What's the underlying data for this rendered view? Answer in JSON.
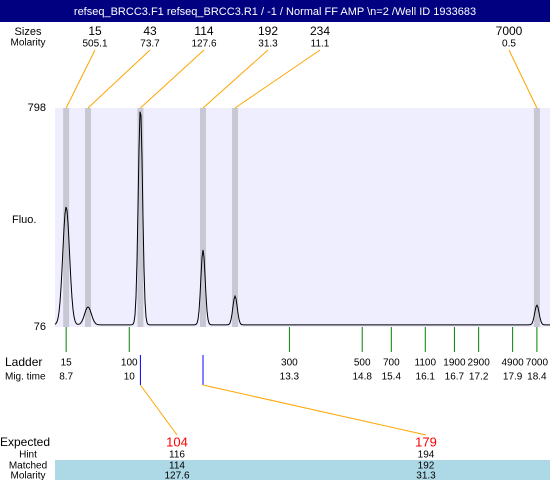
{
  "title": "refseq_BRCC3.F1  refseq_BRCC3.R1 / -1 / Normal FF AMP \\n=2 /Well ID 1933683",
  "header": {
    "size_label": "Sizes",
    "molarity_label": "Molarity",
    "peaks": [
      {
        "size": 15,
        "molarity": 505.1
      },
      {
        "size": 43,
        "molarity": 73.7
      },
      {
        "size": 114,
        "molarity": 127.6
      },
      {
        "size": 192,
        "molarity": 31.3
      },
      {
        "size": 234,
        "molarity": 11.1
      },
      {
        "size": 7000,
        "molarity": 0.5
      }
    ]
  },
  "plot": {
    "y_label": "Fluo.",
    "ylim": [
      76,
      798
    ],
    "yticks": [
      76,
      798
    ],
    "xlim": [
      8.47,
      18.67
    ],
    "baseline": 83,
    "trace_peaks": [
      {
        "time": 8.7,
        "height": 472
      },
      {
        "time": 9.15,
        "height": 142
      },
      {
        "time": 10.23,
        "height": 798
      },
      {
        "time": 11.52,
        "height": 330
      },
      {
        "time": 12.18,
        "height": 178
      },
      {
        "time": 18.4,
        "height": 148
      }
    ]
  },
  "ladder": {
    "label": "Ladder",
    "time_label": "Mig. time",
    "sizes": [
      15,
      100,
      300,
      500,
      700,
      1100,
      1900,
      2900,
      4900,
      7000
    ],
    "times": [
      8.7,
      10,
      13.3,
      14.8,
      15.4,
      16.1,
      16.7,
      17.2,
      17.9,
      18.4
    ]
  },
  "expected": {
    "label": "Expected",
    "hint_label": "Hint",
    "matched_label": "Matched",
    "molarity_label": "Molarity",
    "columns": [
      {
        "expected": 104,
        "hint": 116,
        "matched": 114,
        "molarity": 127.6
      },
      {
        "expected": 179,
        "hint": 194,
        "matched": 192,
        "molarity": 31.3
      }
    ]
  }
}
